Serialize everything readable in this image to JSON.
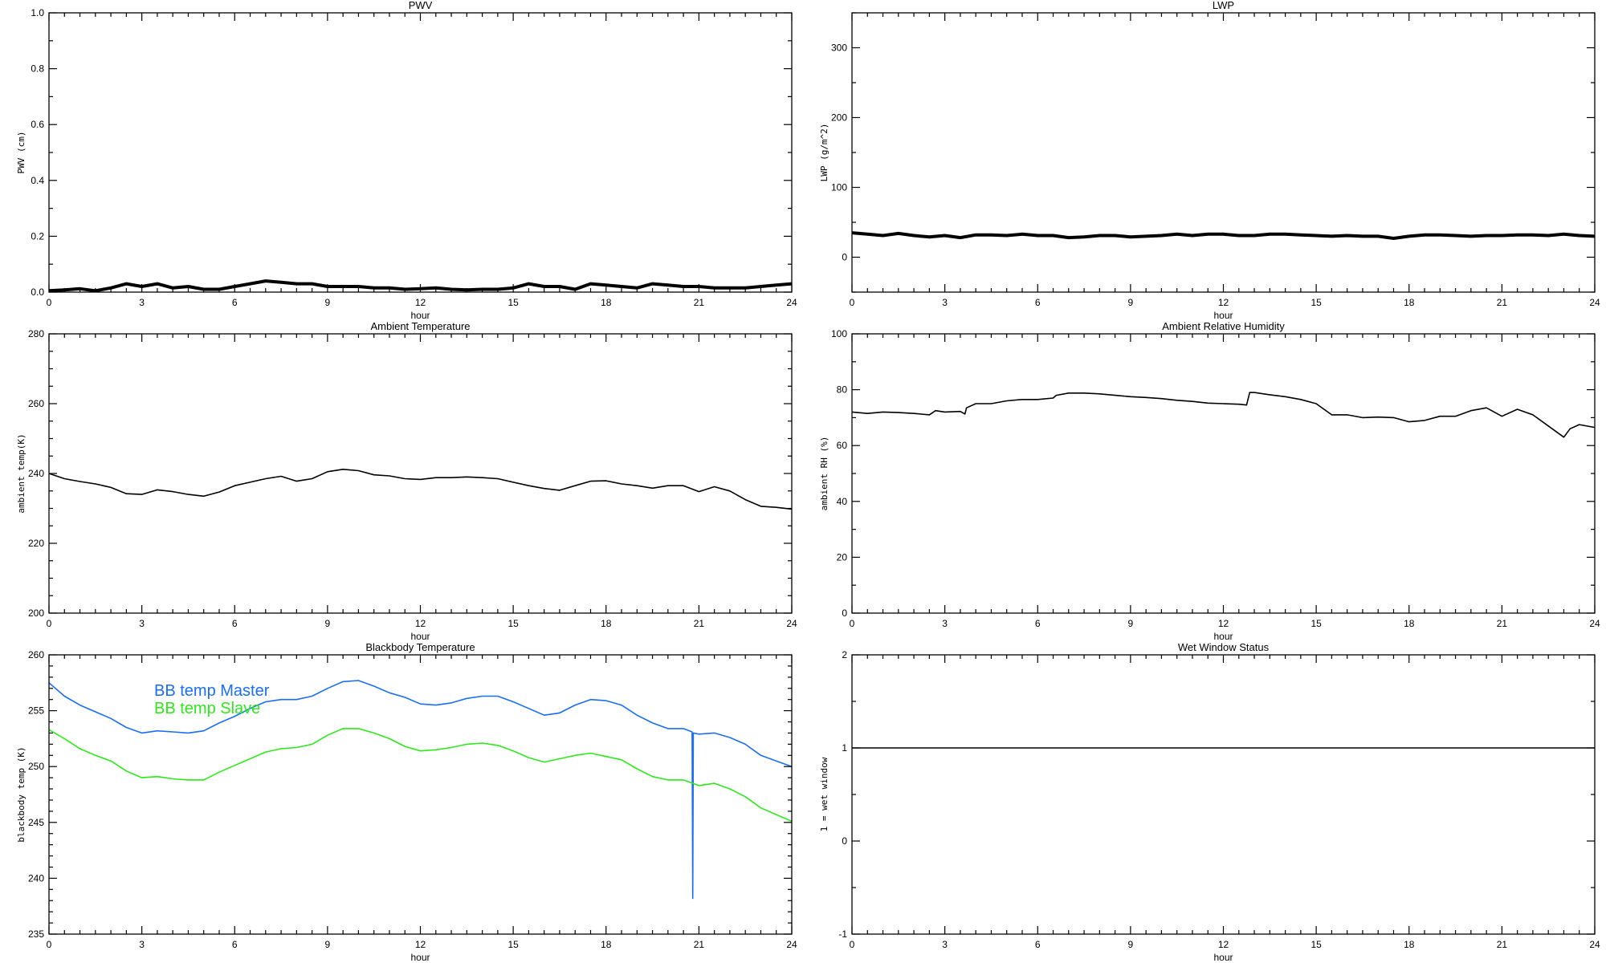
{
  "chart_data": [
    {
      "type": "line",
      "title": "PWV",
      "xlabel": "hour",
      "ylabel": "PWV (cm)",
      "xlim": [
        0,
        24
      ],
      "ylim": [
        0,
        1
      ],
      "xticks": [
        "0",
        "3",
        "6",
        "9",
        "12",
        "15",
        "18",
        "21",
        "24"
      ],
      "xminor": 0.5,
      "yticks": [
        "0.0",
        "0.2",
        "0.4",
        "0.6",
        "0.8",
        "1.0"
      ],
      "yminor": 0.1,
      "series": [
        {
          "color": "#000000",
          "noisy": true,
          "x": [
            0,
            0.5,
            1,
            1.5,
            2,
            2.5,
            3,
            3.5,
            4,
            4.5,
            5,
            5.5,
            6,
            6.5,
            7,
            7.5,
            8,
            8.5,
            9,
            9.5,
            10,
            10.5,
            11,
            11.5,
            12,
            12.5,
            13,
            13.5,
            14,
            14.5,
            15,
            15.5,
            16,
            16.5,
            17,
            17.5,
            18,
            18.5,
            19,
            19.5,
            20,
            20.5,
            21,
            21.5,
            22,
            22.5,
            23,
            23.5,
            24
          ],
          "y": [
            0.005,
            0.008,
            0.012,
            0.005,
            0.015,
            0.03,
            0.02,
            0.03,
            0.015,
            0.02,
            0.01,
            0.01,
            0.02,
            0.03,
            0.04,
            0.035,
            0.03,
            0.03,
            0.02,
            0.02,
            0.02,
            0.015,
            0.015,
            0.01,
            0.012,
            0.015,
            0.01,
            0.008,
            0.01,
            0.01,
            0.015,
            0.03,
            0.02,
            0.02,
            0.01,
            0.03,
            0.025,
            0.02,
            0.015,
            0.03,
            0.025,
            0.02,
            0.02,
            0.015,
            0.015,
            0.015,
            0.02,
            0.025,
            0.03
          ]
        }
      ]
    },
    {
      "type": "line",
      "title": "LWP",
      "xlabel": "hour",
      "ylabel": "LWP (g/m^2)",
      "xlim": [
        0,
        24
      ],
      "ylim": [
        -50,
        350
      ],
      "xticks": [
        "0",
        "3",
        "6",
        "9",
        "12",
        "15",
        "18",
        "21",
        "24"
      ],
      "xminor": 0.5,
      "yticks": [
        "0",
        "100",
        "200",
        "300"
      ],
      "yminor": 50,
      "series": [
        {
          "color": "#000000",
          "noisy": true,
          "x": [
            0,
            0.5,
            1,
            1.5,
            2,
            2.5,
            3,
            3.5,
            4,
            4.5,
            5,
            5.5,
            6,
            6.5,
            7,
            7.5,
            8,
            8.5,
            9,
            9.5,
            10,
            10.5,
            11,
            11.5,
            12,
            12.5,
            13,
            13.5,
            14,
            14.5,
            15,
            15.5,
            16,
            16.5,
            17,
            17.5,
            18,
            18.5,
            19,
            19.5,
            20,
            20.5,
            21,
            21.5,
            22,
            22.5,
            23,
            23.5,
            24
          ],
          "y": [
            35,
            33,
            31,
            34,
            31,
            29,
            31,
            28,
            32,
            32,
            31,
            33,
            31,
            31,
            28,
            29,
            31,
            31,
            29,
            30,
            31,
            33,
            31,
            33,
            33,
            31,
            31,
            33,
            33,
            32,
            31,
            30,
            31,
            30,
            30,
            27,
            30,
            32,
            32,
            31,
            30,
            31,
            31,
            32,
            32,
            31,
            33,
            31,
            30
          ]
        }
      ]
    },
    {
      "type": "line",
      "title": "Ambient Temperature",
      "xlabel": "hour",
      "ylabel": "ambient temp(K)",
      "xlim": [
        0,
        24
      ],
      "ylim": [
        200,
        280
      ],
      "xticks": [
        "0",
        "3",
        "6",
        "9",
        "12",
        "15",
        "18",
        "21",
        "24"
      ],
      "xminor": 0.5,
      "yticks": [
        "200",
        "220",
        "240",
        "260",
        "280"
      ],
      "yminor": 5,
      "series": [
        {
          "color": "#000000",
          "x": [
            0,
            0.5,
            1,
            1.5,
            2,
            2.5,
            3,
            3.5,
            4,
            4.5,
            5,
            5.5,
            6,
            6.5,
            7,
            7.5,
            8,
            8.5,
            9,
            9.5,
            10,
            10.5,
            11,
            11.5,
            12,
            12.5,
            13,
            13.5,
            14,
            14.5,
            15,
            15.5,
            16,
            16.5,
            17,
            17.5,
            18,
            18.5,
            19,
            19.5,
            20,
            20.5,
            21,
            21.5,
            22,
            22.5,
            23,
            23.5,
            24
          ],
          "y": [
            240,
            238.5,
            237.7,
            237,
            236,
            234.2,
            234,
            235.3,
            234.8,
            234,
            233.5,
            234.7,
            236.5,
            237.5,
            238.5,
            239.2,
            237.8,
            238.5,
            240.5,
            241.2,
            240.8,
            239.6,
            239.3,
            238.5,
            238.3,
            238.8,
            238.8,
            239,
            238.8,
            238.5,
            237.5,
            236.5,
            235.7,
            235.2,
            236.5,
            237.8,
            237.9,
            237,
            236.5,
            235.8,
            236.5,
            236.5,
            234.8,
            236.2,
            235,
            232.5,
            230.6,
            230.3,
            229.8
          ]
        }
      ]
    },
    {
      "type": "line",
      "title": "Ambient Relative Humidity",
      "xlabel": "hour",
      "ylabel": "ambient RH (%)",
      "xlim": [
        0,
        24
      ],
      "ylim": [
        0,
        100
      ],
      "xticks": [
        "0",
        "3",
        "6",
        "9",
        "12",
        "15",
        "18",
        "21",
        "24"
      ],
      "xminor": 0.5,
      "yticks": [
        "0",
        "20",
        "40",
        "60",
        "80",
        "100"
      ],
      "yminor": 10,
      "series": [
        {
          "color": "#000000",
          "x": [
            0,
            0.5,
            1,
            1.5,
            2,
            2.5,
            2.7,
            3,
            3.5,
            3.65,
            3.7,
            4,
            4.5,
            5,
            5.5,
            6,
            6.5,
            6.6,
            7,
            7.5,
            8,
            8.5,
            9,
            9.5,
            10,
            10.5,
            11,
            11.5,
            12,
            12.5,
            12.75,
            12.85,
            13,
            13.5,
            14,
            14.5,
            15,
            15.5,
            16,
            16.5,
            17,
            17.5,
            18,
            18.5,
            19,
            19.5,
            20,
            20.5,
            21,
            21.5,
            22,
            22.5,
            23,
            23.2,
            23.5,
            24
          ],
          "y": [
            72,
            71.5,
            72,
            71.8,
            71.5,
            71,
            72.5,
            72,
            72.2,
            71.3,
            73.5,
            75,
            75,
            76,
            76.5,
            76.5,
            77,
            78,
            78.8,
            78.8,
            78.5,
            78,
            77.5,
            77.2,
            76.8,
            76.2,
            75.8,
            75.2,
            75,
            74.8,
            74.5,
            79,
            79,
            78.2,
            77.5,
            76.5,
            75,
            71,
            71,
            70,
            70.2,
            70,
            68.5,
            69,
            70.5,
            70.5,
            72.5,
            73.5,
            70.5,
            73,
            71,
            67,
            63,
            66,
            67.5,
            66.5
          ]
        }
      ]
    },
    {
      "type": "line",
      "title": "Blackbody Temperature",
      "xlabel": "hour",
      "ylabel": "blackbody temp (K)",
      "xlim": [
        0,
        24
      ],
      "ylim": [
        235,
        260
      ],
      "xticks": [
        "0",
        "3",
        "6",
        "9",
        "12",
        "15",
        "18",
        "21",
        "24"
      ],
      "xminor": 0.5,
      "yticks": [
        "235",
        "240",
        "245",
        "250",
        "255",
        "260"
      ],
      "yminor": 1,
      "legend": "upper-left",
      "series": [
        {
          "name": "BB temp Master",
          "color": "#1a6ef5",
          "x": [
            0,
            0.5,
            1,
            1.5,
            2,
            2.5,
            3,
            3.5,
            4,
            4.5,
            5,
            5.5,
            6,
            6.5,
            7,
            7.5,
            8,
            8.5,
            9,
            9.5,
            10,
            10.5,
            11,
            11.5,
            12,
            12.5,
            13,
            13.5,
            14,
            14.5,
            15,
            15.5,
            16,
            16.5,
            17,
            17.5,
            18,
            18.5,
            19,
            19.5,
            20,
            20.5,
            20.78,
            20.8,
            20.82,
            21,
            21.5,
            22,
            22.5,
            23,
            23.5,
            24
          ],
          "y": [
            257.5,
            256.3,
            255.5,
            254.9,
            254.3,
            253.5,
            253,
            253.2,
            253.1,
            253,
            253.2,
            253.9,
            254.5,
            255.2,
            255.8,
            256,
            256,
            256.3,
            257,
            257.6,
            257.7,
            257.2,
            256.6,
            256.2,
            255.6,
            255.5,
            255.7,
            256.1,
            256.3,
            256.3,
            255.8,
            255.2,
            254.6,
            254.8,
            255.5,
            256,
            255.9,
            255.5,
            254.6,
            253.9,
            253.4,
            253.4,
            253.1,
            238.2,
            253.0,
            252.9,
            253,
            252.6,
            252,
            251,
            250.5,
            250
          ]
        },
        {
          "name": "BB temp Slave",
          "color": "#2ee81c",
          "x": [
            0,
            0.5,
            1,
            1.5,
            2,
            2.5,
            3,
            3.5,
            4,
            4.5,
            5,
            5.5,
            6,
            6.5,
            7,
            7.5,
            8,
            8.5,
            9,
            9.5,
            10,
            10.5,
            11,
            11.5,
            12,
            12.5,
            13,
            13.5,
            14,
            14.5,
            15,
            15.5,
            16,
            16.5,
            17,
            17.5,
            18,
            18.5,
            19,
            19.5,
            20,
            20.5,
            21,
            21.5,
            22,
            22.5,
            23,
            23.5,
            24
          ],
          "y": [
            253.3,
            252.5,
            251.6,
            251,
            250.5,
            249.6,
            249,
            249.1,
            248.9,
            248.8,
            248.8,
            249.5,
            250.1,
            250.7,
            251.3,
            251.6,
            251.7,
            252,
            252.8,
            253.4,
            253.4,
            253,
            252.5,
            251.8,
            251.4,
            251.5,
            251.7,
            252,
            252.1,
            251.9,
            251.4,
            250.8,
            250.4,
            250.7,
            251,
            251.2,
            250.9,
            250.6,
            249.8,
            249.1,
            248.8,
            248.8,
            248.3,
            248.5,
            248,
            247.3,
            246.3,
            245.7,
            245.1
          ]
        }
      ]
    },
    {
      "type": "line",
      "title": "Wet Window Status",
      "xlabel": "hour",
      "ylabel": "1 = wet window",
      "xlim": [
        0,
        24
      ],
      "ylim": [
        -1,
        2
      ],
      "xticks": [
        "0",
        "3",
        "6",
        "9",
        "12",
        "15",
        "18",
        "21",
        "24"
      ],
      "xminor": 0.5,
      "yticks": [
        "-1",
        "0",
        "1",
        "2"
      ],
      "yminor": 0.5,
      "series": [
        {
          "color": "#000000",
          "x": [
            0,
            24
          ],
          "y": [
            1,
            1
          ]
        }
      ]
    }
  ]
}
